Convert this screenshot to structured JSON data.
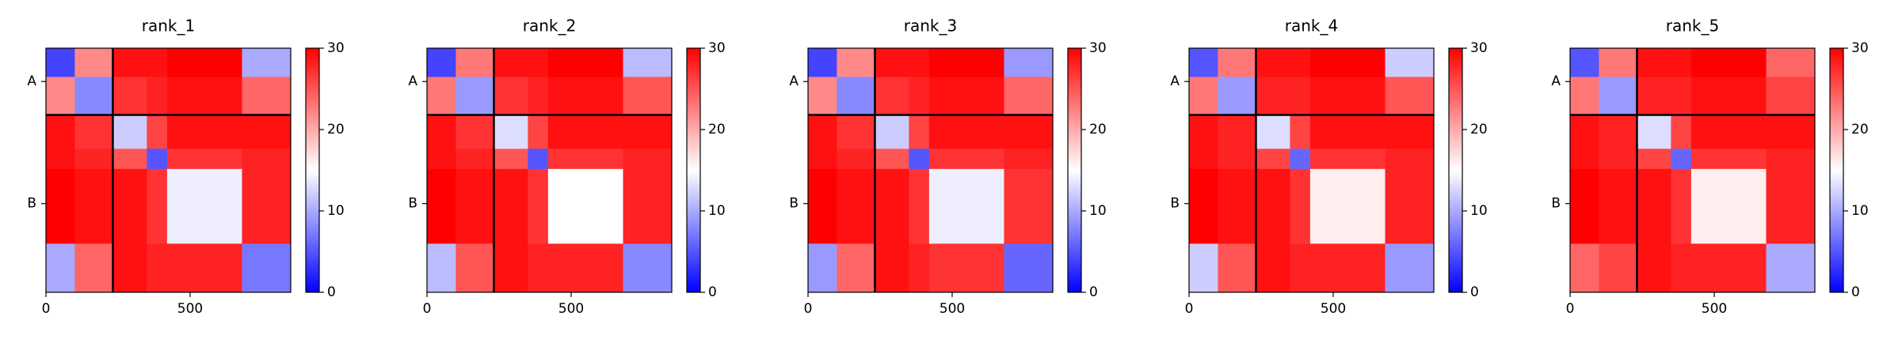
{
  "chart_data": [
    {
      "type": "heatmap",
      "title": "rank_1",
      "edges": [
        0,
        100,
        232,
        350,
        420,
        680,
        849
      ],
      "z": [
        [
          4,
          22,
          29,
          29,
          30,
          10
        ],
        [
          22,
          8,
          27,
          28,
          29,
          24
        ],
        [
          29,
          27,
          12,
          26,
          29,
          29
        ],
        [
          29,
          28,
          25,
          5,
          27,
          28
        ],
        [
          30,
          29,
          29,
          27,
          14,
          28
        ],
        [
          10,
          24,
          29,
          28,
          28,
          7
        ]
      ],
      "xlim": [
        0,
        849
      ],
      "ylim": [
        849,
        0
      ],
      "xticks": [
        0,
        500
      ],
      "chain_labels": [
        "A",
        "B"
      ],
      "chain_boundaries": [
        232
      ],
      "clim": [
        0,
        30
      ],
      "cticks": [
        0,
        10,
        20,
        30
      ],
      "colormap": [
        "#0000ff",
        "#ffffff",
        "#ff0000"
      ]
    },
    {
      "type": "heatmap",
      "title": "rank_2",
      "edges": [
        0,
        100,
        232,
        350,
        420,
        680,
        849
      ],
      "z": [
        [
          4,
          23,
          29,
          29,
          30,
          11
        ],
        [
          23,
          9,
          27,
          28,
          29,
          25
        ],
        [
          29,
          27,
          13,
          26,
          29,
          29
        ],
        [
          29,
          28,
          25,
          5,
          27,
          28
        ],
        [
          30,
          29,
          29,
          27,
          15,
          28
        ],
        [
          11,
          25,
          29,
          28,
          28,
          8
        ]
      ],
      "xlim": [
        0,
        849
      ],
      "ylim": [
        849,
        0
      ],
      "xticks": [
        0,
        500
      ],
      "chain_labels": [
        "A",
        "B"
      ],
      "chain_boundaries": [
        232
      ],
      "clim": [
        0,
        30
      ],
      "cticks": [
        0,
        10,
        20,
        30
      ],
      "colormap": [
        "#0000ff",
        "#ffffff",
        "#ff0000"
      ]
    },
    {
      "type": "heatmap",
      "title": "rank_3",
      "edges": [
        0,
        100,
        232,
        350,
        420,
        680,
        849
      ],
      "z": [
        [
          4,
          22,
          29,
          29,
          30,
          9
        ],
        [
          22,
          8,
          27,
          28,
          29,
          24
        ],
        [
          29,
          27,
          12,
          26,
          29,
          29
        ],
        [
          29,
          28,
          25,
          5,
          27,
          28
        ],
        [
          30,
          29,
          29,
          27,
          14,
          27
        ],
        [
          9,
          24,
          29,
          28,
          27,
          6
        ]
      ],
      "xlim": [
        0,
        849
      ],
      "ylim": [
        849,
        0
      ],
      "xticks": [
        0,
        500
      ],
      "chain_labels": [
        "A",
        "B"
      ],
      "chain_boundaries": [
        232
      ],
      "clim": [
        0,
        30
      ],
      "cticks": [
        0,
        10,
        20,
        30
      ],
      "colormap": [
        "#0000ff",
        "#ffffff",
        "#ff0000"
      ]
    },
    {
      "type": "heatmap",
      "title": "rank_4",
      "edges": [
        0,
        100,
        232,
        350,
        420,
        680,
        849
      ],
      "z": [
        [
          5,
          23,
          29,
          29,
          30,
          12
        ],
        [
          23,
          9,
          28,
          28,
          29,
          25
        ],
        [
          29,
          28,
          13,
          26,
          29,
          29
        ],
        [
          29,
          28,
          26,
          6,
          27,
          28
        ],
        [
          30,
          29,
          29,
          27,
          16,
          28
        ],
        [
          12,
          25,
          29,
          28,
          28,
          9
        ]
      ],
      "xlim": [
        0,
        849
      ],
      "ylim": [
        849,
        0
      ],
      "xticks": [
        0,
        500
      ],
      "chain_labels": [
        "A",
        "B"
      ],
      "chain_boundaries": [
        232
      ],
      "clim": [
        0,
        30
      ],
      "cticks": [
        0,
        10,
        20,
        30
      ],
      "colormap": [
        "#0000ff",
        "#ffffff",
        "#ff0000"
      ]
    },
    {
      "type": "heatmap",
      "title": "rank_5",
      "edges": [
        0,
        100,
        232,
        350,
        420,
        680,
        849
      ],
      "z": [
        [
          5,
          23,
          29,
          29,
          30,
          24
        ],
        [
          23,
          9,
          28,
          28,
          29,
          26
        ],
        [
          29,
          28,
          13,
          26,
          29,
          29
        ],
        [
          29,
          28,
          26,
          6,
          27,
          28
        ],
        [
          30,
          29,
          29,
          27,
          16,
          28
        ],
        [
          24,
          26,
          29,
          28,
          28,
          10
        ]
      ],
      "xlim": [
        0,
        849
      ],
      "ylim": [
        849,
        0
      ],
      "xticks": [
        0,
        500
      ],
      "chain_labels": [
        "A",
        "B"
      ],
      "chain_boundaries": [
        232
      ],
      "clim": [
        0,
        30
      ],
      "cticks": [
        0,
        10,
        20,
        30
      ],
      "colormap": [
        "#0000ff",
        "#ffffff",
        "#ff0000"
      ]
    }
  ]
}
